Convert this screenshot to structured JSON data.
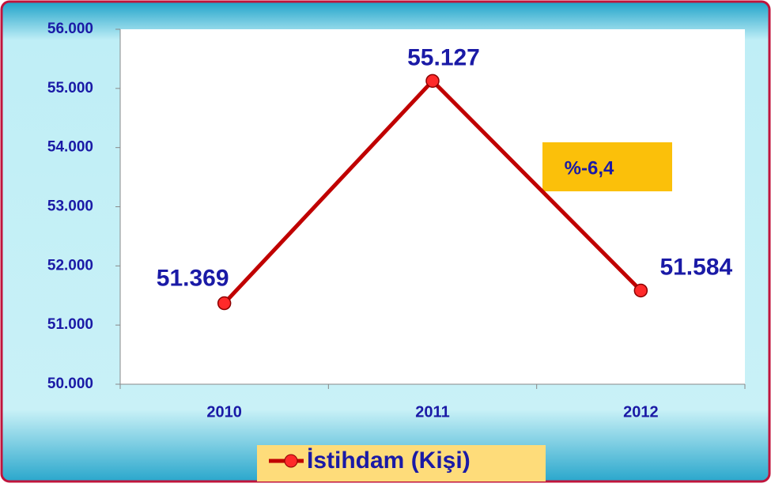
{
  "chart_data": {
    "type": "line",
    "categories": [
      "2010",
      "2011",
      "2012"
    ],
    "series": [
      {
        "name": "İstihdam (Kişi)",
        "color": "#c00000",
        "values": [
          51369,
          55127,
          51584
        ],
        "value_labels": [
          "51.369",
          "55.127",
          "51.584"
        ]
      }
    ],
    "ylim": [
      50000,
      56000
    ],
    "yticks": [
      {
        "value": 50000,
        "label": "50.000"
      },
      {
        "value": 51000,
        "label": "51.000"
      },
      {
        "value": 52000,
        "label": "52.000"
      },
      {
        "value": 53000,
        "label": "53.000"
      },
      {
        "value": 54000,
        "label": "54.000"
      },
      {
        "value": 55000,
        "label": "55.000"
      },
      {
        "value": 56000,
        "label": "56.000"
      }
    ],
    "annotations": [
      "%-6,4"
    ]
  }
}
